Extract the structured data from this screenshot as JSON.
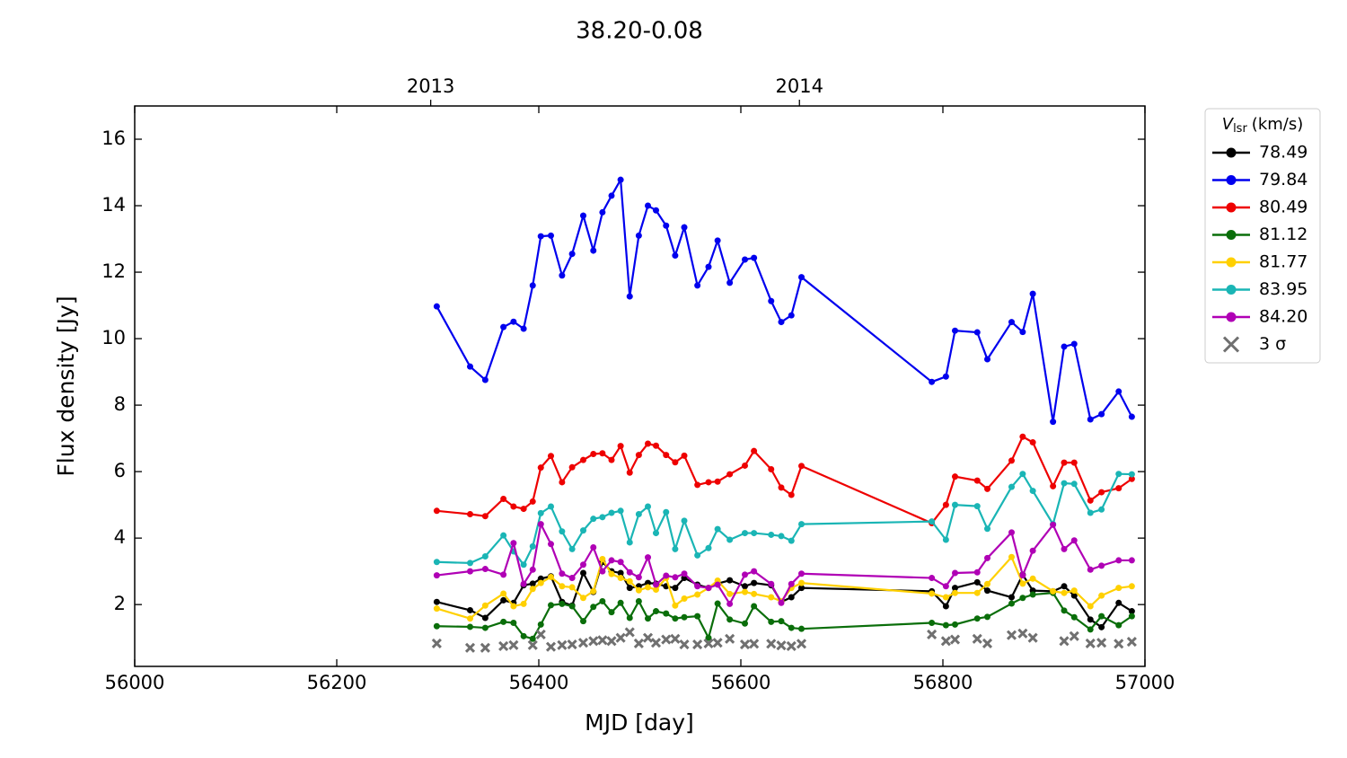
{
  "chart_data": {
    "type": "line",
    "title": "38.20-0.08",
    "x_label": "MJD [day]",
    "y_label": "Flux density [Jy]",
    "legend_title": {
      "symbol": "V",
      "subscript": "lsr",
      "unit": "(km/s)"
    },
    "legend_position": "outside-upper-right",
    "xlim": [
      56000,
      57000
    ],
    "xticks": [
      56000,
      56200,
      56400,
      56600,
      56800,
      57000
    ],
    "ylim": [
      0.14,
      17
    ],
    "yticks": [
      2,
      4,
      6,
      8,
      10,
      12,
      14,
      16
    ],
    "top_xticks": [
      {
        "value": 56293,
        "label": "2013"
      },
      {
        "value": 56658,
        "label": "2014"
      }
    ],
    "x": [
      56299,
      56332,
      56347,
      56365,
      56375,
      56385,
      56394,
      56402,
      56412,
      56423,
      56433,
      56444,
      56454,
      56463,
      56472,
      56481,
      56490,
      56499,
      56508,
      56516,
      56526,
      56535,
      56544,
      56557,
      56568,
      56577,
      56589,
      56604,
      56613,
      56630,
      56640,
      56650,
      56660,
      56789,
      56803,
      56812,
      56834,
      56844,
      56868,
      56879,
      56889,
      56909,
      56920,
      56930,
      56946,
      56957,
      56974,
      56987
    ],
    "series": [
      {
        "name": "78.49",
        "color": "#000000",
        "marker": "o",
        "values": [
          2.08,
          1.83,
          1.6,
          2.13,
          2.05,
          2.58,
          2.63,
          2.78,
          2.85,
          2.08,
          1.97,
          2.95,
          2.38,
          3.28,
          3.0,
          2.95,
          2.5,
          2.55,
          2.65,
          2.63,
          2.55,
          2.5,
          2.8,
          2.6,
          2.5,
          2.63,
          2.73,
          2.55,
          2.65,
          2.58,
          2.08,
          2.22,
          2.5,
          2.4,
          1.95,
          2.5,
          2.67,
          2.42,
          2.22,
          2.9,
          2.42,
          2.4,
          2.55,
          2.27,
          1.55,
          1.32,
          2.05,
          1.8
        ]
      },
      {
        "name": "79.84",
        "color": "#0000ee",
        "marker": "o",
        "values": [
          10.97,
          9.16,
          8.76,
          10.35,
          10.51,
          10.3,
          11.6,
          13.08,
          13.1,
          11.9,
          12.55,
          13.7,
          12.65,
          13.8,
          14.3,
          14.78,
          11.27,
          13.1,
          14.0,
          13.86,
          13.4,
          12.5,
          13.35,
          11.6,
          12.16,
          12.95,
          11.68,
          12.38,
          12.43,
          11.13,
          10.5,
          10.7,
          11.85,
          8.7,
          8.86,
          10.24,
          10.19,
          9.38,
          10.5,
          10.2,
          11.35,
          7.5,
          9.76,
          9.84,
          7.57,
          7.73,
          8.41,
          7.65
        ]
      },
      {
        "name": "80.49",
        "color": "#ee0000",
        "marker": "o",
        "values": [
          4.82,
          4.72,
          4.66,
          5.18,
          4.95,
          4.88,
          5.1,
          6.12,
          6.47,
          5.68,
          6.13,
          6.35,
          6.53,
          6.55,
          6.35,
          6.77,
          5.97,
          6.5,
          6.84,
          6.78,
          6.5,
          6.28,
          6.48,
          5.6,
          5.68,
          5.7,
          5.92,
          6.18,
          6.62,
          6.07,
          5.52,
          5.3,
          6.17,
          4.45,
          5.0,
          5.85,
          5.73,
          5.48,
          6.33,
          7.05,
          6.88,
          5.56,
          6.27,
          6.27,
          5.13,
          5.38,
          5.5,
          5.78
        ]
      },
      {
        "name": "81.12",
        "color": "#0a6e0a",
        "marker": "o",
        "values": [
          1.35,
          1.33,
          1.3,
          1.48,
          1.45,
          1.05,
          0.97,
          1.4,
          1.98,
          2.02,
          1.95,
          1.5,
          1.93,
          2.1,
          1.77,
          2.05,
          1.6,
          2.1,
          1.58,
          1.8,
          1.73,
          1.58,
          1.62,
          1.65,
          1.0,
          2.03,
          1.55,
          1.43,
          1.95,
          1.48,
          1.5,
          1.3,
          1.27,
          1.45,
          1.38,
          1.4,
          1.58,
          1.63,
          2.03,
          2.2,
          2.3,
          2.35,
          1.82,
          1.62,
          1.25,
          1.65,
          1.38,
          1.65
        ]
      },
      {
        "name": "81.77",
        "color": "#ffd000",
        "marker": "o",
        "values": [
          1.88,
          1.58,
          1.97,
          2.33,
          1.95,
          2.02,
          2.47,
          2.65,
          2.83,
          2.55,
          2.52,
          2.2,
          2.4,
          3.37,
          2.92,
          2.8,
          2.7,
          2.43,
          2.52,
          2.45,
          2.8,
          1.97,
          2.18,
          2.3,
          2.5,
          2.72,
          2.32,
          2.38,
          2.32,
          2.22,
          2.1,
          2.5,
          2.65,
          2.33,
          2.22,
          2.35,
          2.35,
          2.62,
          3.43,
          2.63,
          2.78,
          2.4,
          2.35,
          2.42,
          1.95,
          2.27,
          2.5,
          2.55
        ]
      },
      {
        "name": "83.95",
        "color": "#1ab5b5",
        "marker": "o",
        "values": [
          3.28,
          3.25,
          3.45,
          4.08,
          3.6,
          3.2,
          3.75,
          4.75,
          4.95,
          4.2,
          3.67,
          4.23,
          4.58,
          4.63,
          4.76,
          4.82,
          3.87,
          4.72,
          4.95,
          4.15,
          4.78,
          3.67,
          4.52,
          3.48,
          3.7,
          4.27,
          3.95,
          4.15,
          4.15,
          4.1,
          4.06,
          3.92,
          4.42,
          4.5,
          3.95,
          5.0,
          4.96,
          4.28,
          5.54,
          5.93,
          5.42,
          4.42,
          5.65,
          5.63,
          4.76,
          4.86,
          5.93,
          5.92
        ]
      },
      {
        "name": "84.20",
        "color": "#b000b5",
        "marker": "o",
        "values": [
          2.88,
          3.0,
          3.07,
          2.9,
          3.85,
          2.62,
          3.05,
          4.42,
          3.82,
          2.93,
          2.8,
          3.2,
          3.72,
          3.0,
          3.33,
          3.28,
          2.97,
          2.82,
          3.42,
          2.6,
          2.87,
          2.82,
          2.93,
          2.55,
          2.5,
          2.6,
          2.02,
          2.9,
          3.0,
          2.62,
          2.05,
          2.62,
          2.93,
          2.8,
          2.55,
          2.95,
          2.97,
          3.4,
          4.17,
          2.88,
          3.62,
          4.4,
          3.67,
          3.93,
          3.05,
          3.17,
          3.33,
          3.33
        ]
      },
      {
        "name": "3 σ",
        "color": "#707070",
        "marker": "x",
        "values": [
          0.83,
          0.7,
          0.7,
          0.75,
          0.78,
          null,
          0.78,
          1.1,
          0.73,
          0.78,
          0.8,
          0.85,
          0.9,
          0.93,
          0.9,
          1.0,
          1.17,
          0.83,
          1.0,
          0.85,
          0.95,
          0.97,
          0.8,
          0.8,
          0.83,
          0.85,
          0.97,
          0.8,
          0.82,
          0.82,
          0.77,
          0.75,
          0.82,
          1.1,
          0.9,
          0.95,
          0.97,
          0.83,
          1.08,
          1.13,
          1.0,
          null,
          0.9,
          1.05,
          0.83,
          0.85,
          0.82,
          0.88
        ]
      }
    ]
  }
}
